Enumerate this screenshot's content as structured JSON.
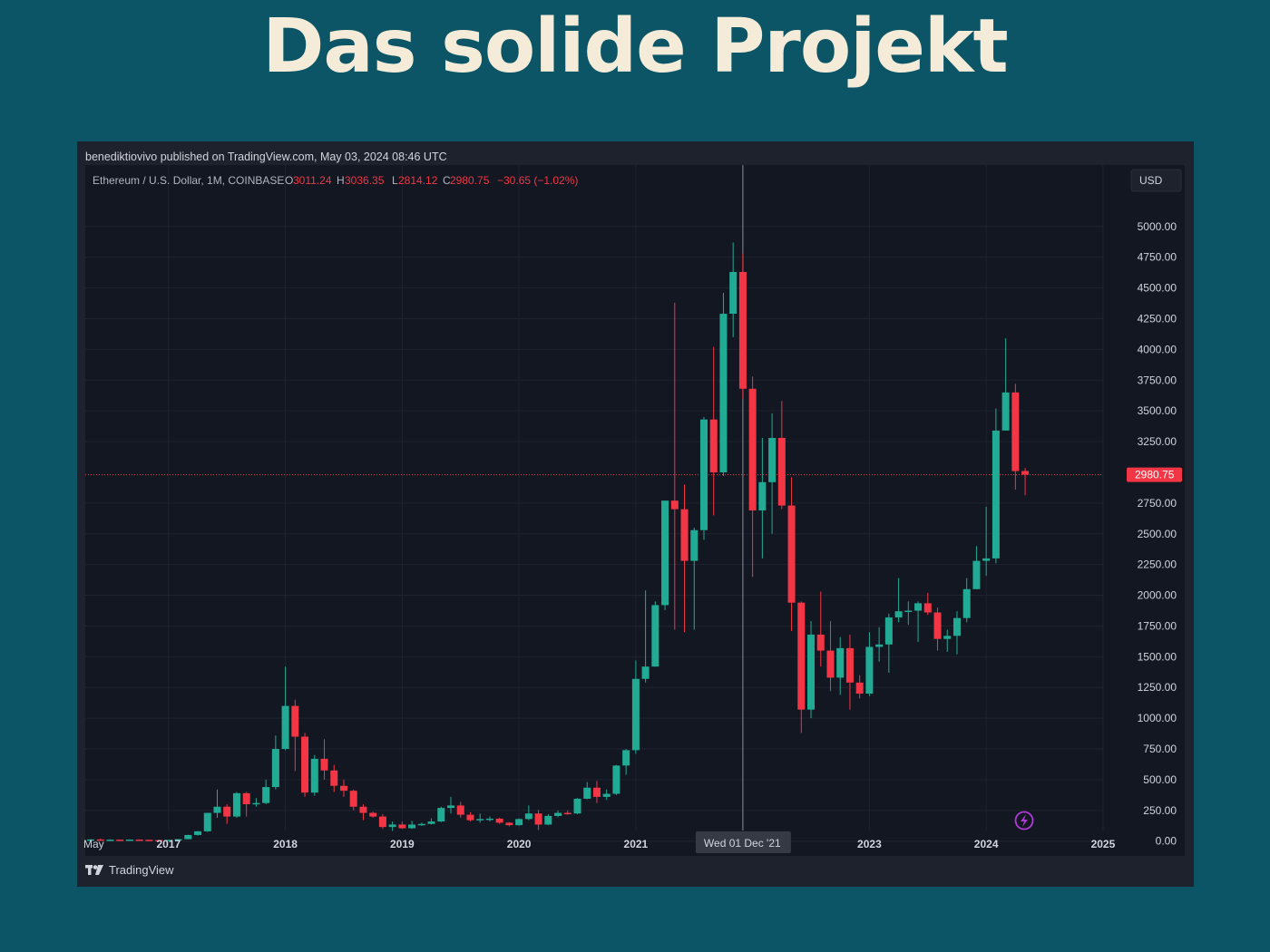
{
  "page": {
    "title": "Das solide Projekt"
  },
  "chart_header": {
    "published_line": "benediktiovivo published on TradingView.com, May 03, 2024 08:46 UTC",
    "symbol": "Ethereum / U.S. Dollar, 1M, COINBASE",
    "open_label": "O",
    "open_value": "3011.24",
    "high_label": "H",
    "high_value": "3036.35",
    "low_label": "L",
    "low_value": "2814.12",
    "close_label": "C",
    "close_value": "2980.75",
    "change": "−30.65 (−1.02%)",
    "currency_button": "USD",
    "last_price_label": "2980.75",
    "crosshair_date": "Wed 01 Dec '21",
    "brand": "TradingView"
  },
  "colors": {
    "up": "#22ab94",
    "down": "#f23645",
    "background": "#131722",
    "panel": "#1e222d",
    "title": "#f4ecd8"
  },
  "icons": {
    "lightning": "lightning-icon",
    "logo": "tradingview-logo-icon"
  },
  "chart_data": {
    "type": "candlestick",
    "title": "Ethereum / U.S. Dollar, 1M, COINBASE",
    "ylim": [
      -120,
      5500
    ],
    "x_tick_labels": [
      {
        "label": "May",
        "date": "2016-05"
      },
      {
        "label": "2017",
        "date": "2017-01"
      },
      {
        "label": "2018",
        "date": "2018-01"
      },
      {
        "label": "2019",
        "date": "2019-01"
      },
      {
        "label": "2020",
        "date": "2020-01"
      },
      {
        "label": "2021",
        "date": "2021-01"
      },
      {
        "label": "2023",
        "date": "2023-01"
      },
      {
        "label": "2024",
        "date": "2024-01"
      },
      {
        "label": "2025",
        "date": "2025-01"
      }
    ],
    "y_tick_labels": [
      "0.00",
      "250.00",
      "500.00",
      "750.00",
      "1000.00",
      "1250.00",
      "1500.00",
      "1750.00",
      "2000.00",
      "2250.00",
      "2500.00",
      "2750.00",
      "3250.00",
      "3500.00",
      "3750.00",
      "4000.00",
      "4250.00",
      "4500.00",
      "4750.00",
      "5000.00"
    ],
    "y_tick_values": [
      0,
      250,
      500,
      750,
      1000,
      1250,
      1500,
      1750,
      2000,
      2250,
      2500,
      2750,
      3250,
      3500,
      3750,
      4000,
      4250,
      4500,
      4750,
      5000
    ],
    "last_price": 2980.75,
    "crosshair_date": "2021-12",
    "candles": [
      {
        "d": "2016-05",
        "o": 11,
        "h": 14,
        "l": 9,
        "c": 14
      },
      {
        "d": "2016-06",
        "o": 14,
        "h": 21,
        "l": 11,
        "c": 12
      },
      {
        "d": "2016-07",
        "o": 12,
        "h": 15,
        "l": 10,
        "c": 12
      },
      {
        "d": "2016-08",
        "o": 12,
        "h": 13,
        "l": 10,
        "c": 11
      },
      {
        "d": "2016-09",
        "o": 11,
        "h": 14,
        "l": 11,
        "c": 13
      },
      {
        "d": "2016-10",
        "o": 13,
        "h": 14,
        "l": 10,
        "c": 11
      },
      {
        "d": "2016-11",
        "o": 11,
        "h": 12,
        "l": 8,
        "c": 9
      },
      {
        "d": "2016-12",
        "o": 9,
        "h": 9,
        "l": 6,
        "c": 8
      },
      {
        "d": "2017-01",
        "o": 8,
        "h": 11,
        "l": 8,
        "c": 10
      },
      {
        "d": "2017-02",
        "o": 10,
        "h": 16,
        "l": 10,
        "c": 16
      },
      {
        "d": "2017-03",
        "o": 16,
        "h": 52,
        "l": 15,
        "c": 50
      },
      {
        "d": "2017-04",
        "o": 50,
        "h": 82,
        "l": 45,
        "c": 80
      },
      {
        "d": "2017-05",
        "o": 80,
        "h": 230,
        "l": 75,
        "c": 230
      },
      {
        "d": "2017-06",
        "o": 230,
        "h": 420,
        "l": 190,
        "c": 280
      },
      {
        "d": "2017-07",
        "o": 280,
        "h": 300,
        "l": 140,
        "c": 200
      },
      {
        "d": "2017-08",
        "o": 200,
        "h": 400,
        "l": 190,
        "c": 390
      },
      {
        "d": "2017-09",
        "o": 390,
        "h": 400,
        "l": 200,
        "c": 300
      },
      {
        "d": "2017-10",
        "o": 300,
        "h": 350,
        "l": 280,
        "c": 310
      },
      {
        "d": "2017-11",
        "o": 310,
        "h": 500,
        "l": 300,
        "c": 440
      },
      {
        "d": "2017-12",
        "o": 440,
        "h": 860,
        "l": 420,
        "c": 750
      },
      {
        "d": "2018-01",
        "o": 750,
        "h": 1420,
        "l": 740,
        "c": 1100
      },
      {
        "d": "2018-02",
        "o": 1100,
        "h": 1150,
        "l": 570,
        "c": 850
      },
      {
        "d": "2018-03",
        "o": 850,
        "h": 880,
        "l": 360,
        "c": 395
      },
      {
        "d": "2018-04",
        "o": 395,
        "h": 700,
        "l": 370,
        "c": 670
      },
      {
        "d": "2018-05",
        "o": 670,
        "h": 830,
        "l": 500,
        "c": 575
      },
      {
        "d": "2018-06",
        "o": 575,
        "h": 620,
        "l": 400,
        "c": 450
      },
      {
        "d": "2018-07",
        "o": 450,
        "h": 500,
        "l": 360,
        "c": 410
      },
      {
        "d": "2018-08",
        "o": 410,
        "h": 420,
        "l": 250,
        "c": 280
      },
      {
        "d": "2018-09",
        "o": 280,
        "h": 300,
        "l": 170,
        "c": 230
      },
      {
        "d": "2018-10",
        "o": 230,
        "h": 240,
        "l": 190,
        "c": 200
      },
      {
        "d": "2018-11",
        "o": 200,
        "h": 220,
        "l": 100,
        "c": 115
      },
      {
        "d": "2018-12",
        "o": 115,
        "h": 160,
        "l": 83,
        "c": 135
      },
      {
        "d": "2019-01",
        "o": 135,
        "h": 160,
        "l": 100,
        "c": 105
      },
      {
        "d": "2019-02",
        "o": 105,
        "h": 165,
        "l": 100,
        "c": 135
      },
      {
        "d": "2019-03",
        "o": 135,
        "h": 150,
        "l": 125,
        "c": 140
      },
      {
        "d": "2019-04",
        "o": 140,
        "h": 185,
        "l": 135,
        "c": 160
      },
      {
        "d": "2019-05",
        "o": 160,
        "h": 280,
        "l": 155,
        "c": 270
      },
      {
        "d": "2019-06",
        "o": 270,
        "h": 360,
        "l": 225,
        "c": 290
      },
      {
        "d": "2019-07",
        "o": 290,
        "h": 320,
        "l": 190,
        "c": 215
      },
      {
        "d": "2019-08",
        "o": 215,
        "h": 235,
        "l": 160,
        "c": 170
      },
      {
        "d": "2019-09",
        "o": 170,
        "h": 225,
        "l": 150,
        "c": 180
      },
      {
        "d": "2019-10",
        "o": 180,
        "h": 200,
        "l": 160,
        "c": 183
      },
      {
        "d": "2019-11",
        "o": 183,
        "h": 190,
        "l": 140,
        "c": 150
      },
      {
        "d": "2019-12",
        "o": 150,
        "h": 155,
        "l": 120,
        "c": 130
      },
      {
        "d": "2020-01",
        "o": 130,
        "h": 185,
        "l": 125,
        "c": 180
      },
      {
        "d": "2020-02",
        "o": 180,
        "h": 290,
        "l": 170,
        "c": 225
      },
      {
        "d": "2020-03",
        "o": 225,
        "h": 255,
        "l": 90,
        "c": 135
      },
      {
        "d": "2020-04",
        "o": 135,
        "h": 220,
        "l": 130,
        "c": 205
      },
      {
        "d": "2020-05",
        "o": 205,
        "h": 250,
        "l": 195,
        "c": 230
      },
      {
        "d": "2020-06",
        "o": 230,
        "h": 250,
        "l": 215,
        "c": 225
      },
      {
        "d": "2020-07",
        "o": 225,
        "h": 350,
        "l": 220,
        "c": 345
      },
      {
        "d": "2020-08",
        "o": 345,
        "h": 480,
        "l": 340,
        "c": 435
      },
      {
        "d": "2020-09",
        "o": 435,
        "h": 490,
        "l": 310,
        "c": 360
      },
      {
        "d": "2020-10",
        "o": 360,
        "h": 420,
        "l": 335,
        "c": 385
      },
      {
        "d": "2020-11",
        "o": 385,
        "h": 620,
        "l": 375,
        "c": 615
      },
      {
        "d": "2020-12",
        "o": 615,
        "h": 750,
        "l": 540,
        "c": 740
      },
      {
        "d": "2021-01",
        "o": 740,
        "h": 1470,
        "l": 710,
        "c": 1320
      },
      {
        "d": "2021-02",
        "o": 1320,
        "h": 2040,
        "l": 1290,
        "c": 1420
      },
      {
        "d": "2021-03",
        "o": 1420,
        "h": 1950,
        "l": 1420,
        "c": 1920
      },
      {
        "d": "2021-04",
        "o": 1920,
        "h": 2750,
        "l": 1880,
        "c": 2770
      },
      {
        "d": "2021-05",
        "o": 2770,
        "h": 4380,
        "l": 1720,
        "c": 2700
      },
      {
        "d": "2021-06",
        "o": 2700,
        "h": 2900,
        "l": 1700,
        "c": 2280
      },
      {
        "d": "2021-07",
        "o": 2280,
        "h": 2550,
        "l": 1720,
        "c": 2530
      },
      {
        "d": "2021-08",
        "o": 2530,
        "h": 3450,
        "l": 2450,
        "c": 3430
      },
      {
        "d": "2021-09",
        "o": 3430,
        "h": 4020,
        "l": 2650,
        "c": 3000
      },
      {
        "d": "2021-10",
        "o": 3000,
        "h": 4460,
        "l": 2970,
        "c": 4290
      },
      {
        "d": "2021-11",
        "o": 4290,
        "h": 4870,
        "l": 4100,
        "c": 4630
      },
      {
        "d": "2021-12",
        "o": 4630,
        "h": 4780,
        "l": 3600,
        "c": 3680
      },
      {
        "d": "2022-01",
        "o": 3680,
        "h": 3780,
        "l": 2150,
        "c": 2690
      },
      {
        "d": "2022-02",
        "o": 2690,
        "h": 3280,
        "l": 2300,
        "c": 2920
      },
      {
        "d": "2022-03",
        "o": 2920,
        "h": 3480,
        "l": 2500,
        "c": 3280
      },
      {
        "d": "2022-04",
        "o": 3280,
        "h": 3580,
        "l": 2700,
        "c": 2730
      },
      {
        "d": "2022-05",
        "o": 2730,
        "h": 2960,
        "l": 1710,
        "c": 1940
      },
      {
        "d": "2022-06",
        "o": 1940,
        "h": 1950,
        "l": 880,
        "c": 1070
      },
      {
        "d": "2022-07",
        "o": 1070,
        "h": 1790,
        "l": 1000,
        "c": 1680
      },
      {
        "d": "2022-08",
        "o": 1680,
        "h": 2030,
        "l": 1420,
        "c": 1550
      },
      {
        "d": "2022-09",
        "o": 1550,
        "h": 1790,
        "l": 1220,
        "c": 1330
      },
      {
        "d": "2022-10",
        "o": 1330,
        "h": 1660,
        "l": 1190,
        "c": 1570
      },
      {
        "d": "2022-11",
        "o": 1570,
        "h": 1680,
        "l": 1070,
        "c": 1290
      },
      {
        "d": "2022-12",
        "o": 1290,
        "h": 1350,
        "l": 1160,
        "c": 1200
      },
      {
        "d": "2023-01",
        "o": 1200,
        "h": 1700,
        "l": 1180,
        "c": 1580
      },
      {
        "d": "2023-02",
        "o": 1580,
        "h": 1740,
        "l": 1460,
        "c": 1600
      },
      {
        "d": "2023-03",
        "o": 1600,
        "h": 1850,
        "l": 1370,
        "c": 1820
      },
      {
        "d": "2023-04",
        "o": 1820,
        "h": 2140,
        "l": 1780,
        "c": 1870
      },
      {
        "d": "2023-05",
        "o": 1870,
        "h": 1950,
        "l": 1760,
        "c": 1875
      },
      {
        "d": "2023-06",
        "o": 1875,
        "h": 1950,
        "l": 1620,
        "c": 1935
      },
      {
        "d": "2023-07",
        "o": 1935,
        "h": 2020,
        "l": 1840,
        "c": 1860
      },
      {
        "d": "2023-08",
        "o": 1860,
        "h": 1900,
        "l": 1550,
        "c": 1645
      },
      {
        "d": "2023-09",
        "o": 1645,
        "h": 1720,
        "l": 1540,
        "c": 1670
      },
      {
        "d": "2023-10",
        "o": 1670,
        "h": 1870,
        "l": 1520,
        "c": 1815
      },
      {
        "d": "2023-11",
        "o": 1815,
        "h": 2140,
        "l": 1780,
        "c": 2050
      },
      {
        "d": "2023-12",
        "o": 2050,
        "h": 2400,
        "l": 2050,
        "c": 2280
      },
      {
        "d": "2024-01",
        "o": 2280,
        "h": 2720,
        "l": 2160,
        "c": 2300
      },
      {
        "d": "2024-02",
        "o": 2300,
        "h": 3520,
        "l": 2260,
        "c": 3340
      },
      {
        "d": "2024-03",
        "o": 3340,
        "h": 4090,
        "l": 3360,
        "c": 3650
      },
      {
        "d": "2024-04",
        "o": 3650,
        "h": 3720,
        "l": 2860,
        "c": 3010
      },
      {
        "d": "2024-05",
        "o": 3011.24,
        "h": 3036.35,
        "l": 2814.12,
        "c": 2980.75
      }
    ]
  }
}
